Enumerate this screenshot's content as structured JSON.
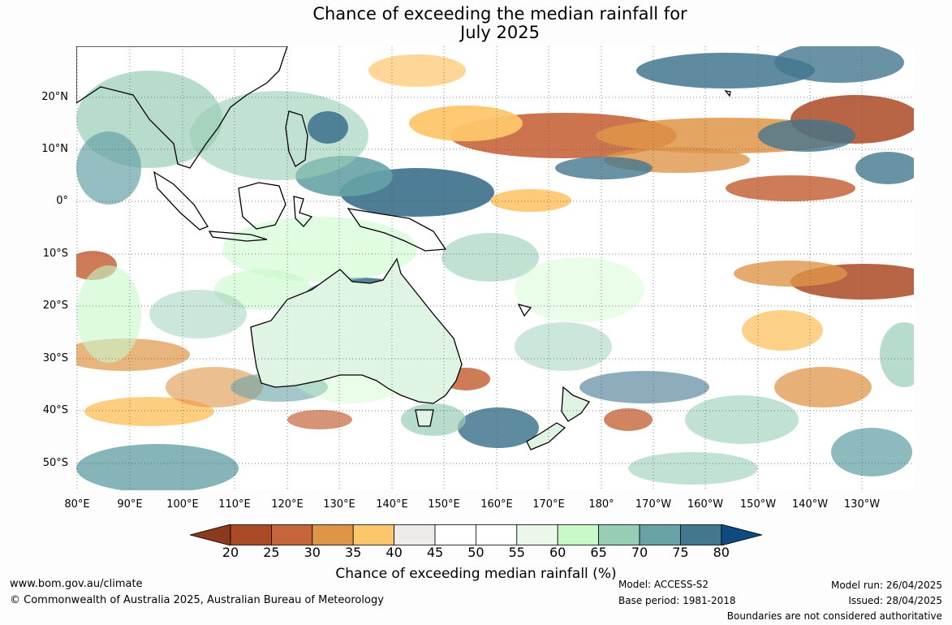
{
  "title": {
    "line1": "Chance of exceeding the median rainfall for",
    "line2": "July 2025"
  },
  "map": {
    "lat_labels": [
      "20°N",
      "10°N",
      "0°",
      "10°S",
      "20°S",
      "30°S",
      "40°S",
      "50°S"
    ],
    "lon_labels": [
      "80°E",
      "90°E",
      "100°E",
      "110°E",
      "120°E",
      "130°E",
      "140°E",
      "150°E",
      "160°E",
      "170°E",
      "180°",
      "170°W",
      "160°W",
      "150°W",
      "140°W",
      "130°W"
    ],
    "gridline_color": "#555555",
    "coastline_color": "#000000",
    "mainland_fill": "#dff4e2"
  },
  "colorbar": {
    "label": "Chance of exceeding median rainfall (%)",
    "ticks": [
      "20",
      "25",
      "30",
      "35",
      "40",
      "45",
      "50",
      "55",
      "60",
      "65",
      "70",
      "75",
      "80"
    ],
    "low_color": "#8b3a1e",
    "high_color": "#0f4a80",
    "colors": [
      "#ab4a26",
      "#c6653a",
      "#df9548",
      "#fec66a",
      "#ecebe7",
      "#ffffff",
      "#ffffff",
      "#eaf8ea",
      "#c7f9c9",
      "#98cdb5",
      "#67a3a6",
      "#43778f"
    ]
  },
  "footer": {
    "website": "www.bom.gov.au/climate",
    "copyright": "© Commonwealth of Australia 2025, Australian Bureau of Meteorology",
    "model": "Model: ACCESS-S2",
    "base_period": "Base period: 1981-2018",
    "model_run": "Model run: 26/04/2025",
    "issued": "Issued: 28/04/2025",
    "boundaries": "Boundaries are not considered authoritative"
  }
}
